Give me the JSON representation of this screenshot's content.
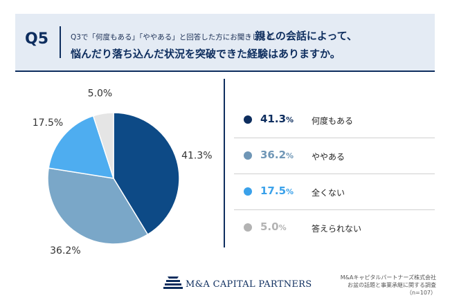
{
  "header": {
    "label": "Q5",
    "sub_question": "Q3で「何度もある」「ややある」と回答した方にお聞きします。",
    "question_line1": "親との会話によって、",
    "question_line2": "悩んだり落ち込んだ状況を突破できた経験はありますか。"
  },
  "chart_data": {
    "type": "pie",
    "categories": [
      "何度もある",
      "ややある",
      "全くない",
      "答えられない"
    ],
    "values": [
      41.3,
      36.2,
      17.5,
      5.0
    ],
    "labels": [
      "41.3%",
      "36.2%",
      "17.5%",
      "5.0%"
    ],
    "colors": [
      "#0d4a86",
      "#7aa7c8",
      "#4eadf0",
      "#e5e5e5"
    ],
    "start_angle": 0,
    "direction": "clockwise",
    "legend_position": "right"
  },
  "legend": [
    {
      "value": "41.3",
      "unit": "%",
      "name": "何度もある",
      "color": "#0d2d5e",
      "text_color": "#0d2d5e"
    },
    {
      "value": "36.2",
      "unit": "%",
      "name": "ややある",
      "color": "#6f96b6",
      "text_color": "#6f96b6"
    },
    {
      "value": "17.5",
      "unit": "%",
      "name": "全くない",
      "color": "#3aa1ea",
      "text_color": "#3aa1ea"
    },
    {
      "value": "5.0",
      "unit": "%",
      "name": "答えられない",
      "color": "#b3b3b3",
      "text_color": "#b3b3b3"
    }
  ],
  "footer": {
    "logo_text": "M&A CAPITAL PARTNERS",
    "source_line1": "M&Aキャピタルパートナーズ株式会社",
    "source_line2": "お盆の話題と事業承継に関する調査",
    "source_line3": "（n=107）"
  }
}
